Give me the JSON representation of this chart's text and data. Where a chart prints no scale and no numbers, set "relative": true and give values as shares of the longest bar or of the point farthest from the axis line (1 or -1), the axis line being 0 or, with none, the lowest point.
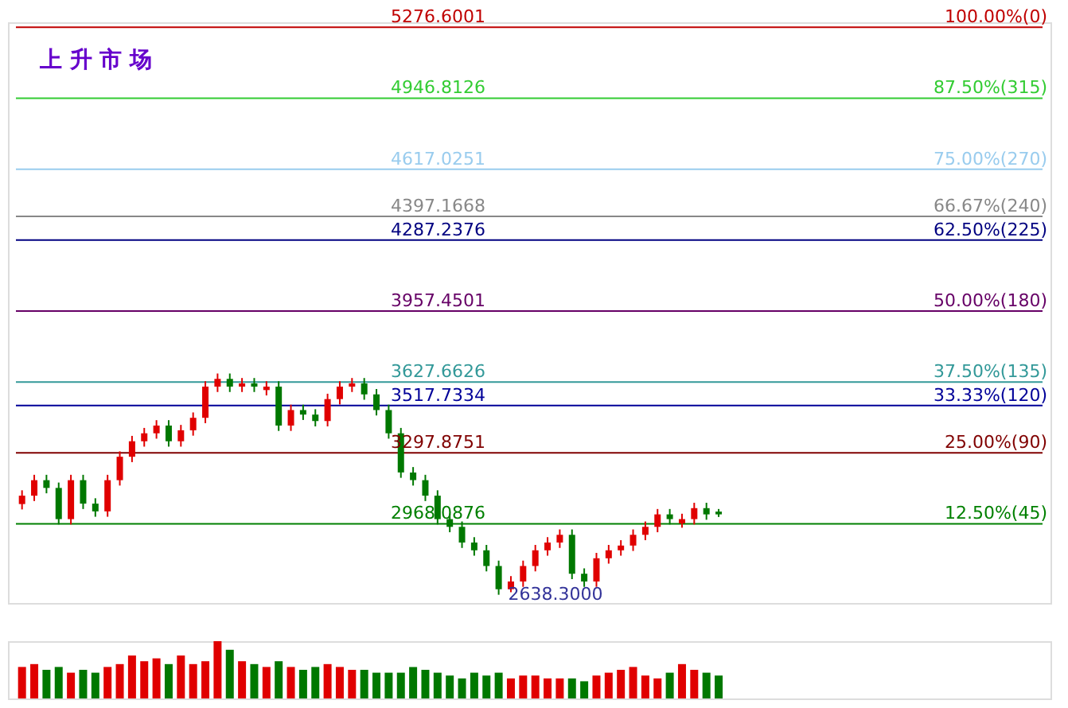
{
  "chart_data": [
    {
      "type": "candlestick",
      "title": "上 升 市 场",
      "categories": [
        null,
        null,
        null,
        null,
        null,
        null,
        null,
        null,
        null,
        null,
        null,
        null,
        null,
        null,
        null,
        null,
        null,
        null,
        null,
        null,
        null,
        null,
        null,
        null,
        null,
        null,
        null,
        null,
        null,
        null,
        null,
        null,
        null,
        null,
        null,
        null,
        null,
        null,
        null,
        null,
        null,
        null,
        null,
        null,
        null,
        null,
        null,
        null,
        null,
        null,
        null,
        null,
        null,
        null,
        null,
        null,
        null,
        null
      ],
      "ohlc": [
        [
          3060,
          3124,
          3035,
          3099
        ],
        [
          3099,
          3196,
          3074,
          3171
        ],
        [
          3171,
          3196,
          3110,
          3135
        ],
        [
          3135,
          3160,
          2965,
          2990
        ],
        [
          2990,
          3196,
          2965,
          3171
        ],
        [
          3171,
          3196,
          3037,
          3062
        ],
        [
          3062,
          3087,
          3001,
          3026
        ],
        [
          3026,
          3196,
          3001,
          3171
        ],
        [
          3171,
          3305,
          3146,
          3280
        ],
        [
          3280,
          3377,
          3255,
          3352
        ],
        [
          3352,
          3414,
          3327,
          3389
        ],
        [
          3389,
          3450,
          3364,
          3425
        ],
        [
          3425,
          3450,
          3327,
          3352
        ],
        [
          3352,
          3428,
          3327,
          3403
        ],
        [
          3403,
          3486,
          3378,
          3461
        ],
        [
          3461,
          3631,
          3436,
          3606
        ],
        [
          3606,
          3667,
          3581,
          3642
        ],
        [
          3642,
          3667,
          3581,
          3606
        ],
        [
          3606,
          3646,
          3581,
          3621
        ],
        [
          3621,
          3646,
          3581,
          3606
        ],
        [
          3590,
          3631,
          3565,
          3606
        ],
        [
          3606,
          3631,
          3400,
          3425
        ],
        [
          3425,
          3522,
          3400,
          3497
        ],
        [
          3497,
          3522,
          3451,
          3476
        ],
        [
          3476,
          3501,
          3421,
          3446
        ],
        [
          3446,
          3573,
          3421,
          3548
        ],
        [
          3548,
          3631,
          3523,
          3606
        ],
        [
          3606,
          3646,
          3581,
          3621
        ],
        [
          3621,
          3646,
          3545,
          3570
        ],
        [
          3570,
          3595,
          3472,
          3497
        ],
        [
          3497,
          3522,
          3364,
          3389
        ],
        [
          3389,
          3414,
          3182,
          3207
        ],
        [
          3207,
          3232,
          3146,
          3171
        ],
        [
          3171,
          3196,
          3074,
          3099
        ],
        [
          3099,
          3124,
          2965,
          2990
        ],
        [
          2990,
          3015,
          2929,
          2954
        ],
        [
          2954,
          2979,
          2856,
          2881
        ],
        [
          2881,
          2906,
          2820,
          2845
        ],
        [
          2845,
          2870,
          2747,
          2772
        ],
        [
          2772,
          2797,
          2638.3,
          2664
        ],
        [
          2664,
          2725,
          2650,
          2700
        ],
        [
          2700,
          2797,
          2675,
          2772
        ],
        [
          2772,
          2870,
          2747,
          2845
        ],
        [
          2845,
          2906,
          2820,
          2881
        ],
        [
          2881,
          2942,
          2856,
          2917
        ],
        [
          2917,
          2942,
          2711,
          2736
        ],
        [
          2736,
          2761,
          2675,
          2700
        ],
        [
          2700,
          2833,
          2675,
          2808
        ],
        [
          2808,
          2870,
          2783,
          2845
        ],
        [
          2845,
          2892,
          2820,
          2867
        ],
        [
          2867,
          2942,
          2842,
          2917
        ],
        [
          2917,
          2979,
          2892,
          2954
        ],
        [
          2954,
          3037,
          2929,
          3012
        ],
        [
          3012,
          3037,
          2965,
          2990
        ],
        [
          2970,
          3015,
          2950,
          2990
        ],
        [
          2990,
          3066,
          2965,
          3041
        ],
        [
          3041,
          3066,
          2987,
          3012
        ],
        [
          3025,
          3037,
          3000,
          3012
        ]
      ],
      "colors": [
        "#e00000",
        "#e00000",
        "#007800",
        "#007800",
        "#e00000",
        "#007800",
        "#007800",
        "#e00000",
        "#e00000",
        "#e00000",
        "#e00000",
        "#e00000",
        "#007800",
        "#e00000",
        "#e00000",
        "#e00000",
        "#e00000",
        "#007800",
        "#e00000",
        "#007800",
        "#e00000",
        "#007800",
        "#e00000",
        "#007800",
        "#007800",
        "#e00000",
        "#e00000",
        "#e00000",
        "#007800",
        "#007800",
        "#007800",
        "#007800",
        "#007800",
        "#007800",
        "#007800",
        "#007800",
        "#007800",
        "#007800",
        "#007800",
        "#007800",
        "#e00000",
        "#e00000",
        "#e00000",
        "#e00000",
        "#e00000",
        "#007800",
        "#007800",
        "#e00000",
        "#e00000",
        "#e00000",
        "#e00000",
        "#e00000",
        "#e00000",
        "#007800",
        "#e00000",
        "#e00000",
        "#007800",
        "#007800"
      ],
      "ylim": [
        2600,
        5300
      ],
      "yticks": [
        5276.6001,
        4946.8126,
        4617.0251,
        4397.1668,
        4287.2376,
        3957.4501,
        3627.6626,
        3517.7334,
        3297.8751,
        2968.0876
      ],
      "tick_labels": "y",
      "grid": false,
      "ref_lines": [
        {
          "axis": "y",
          "value": 5276.6001,
          "color": "#c00000"
        },
        {
          "axis": "y",
          "value": 4946.8126,
          "color": "#33cc33"
        },
        {
          "axis": "y",
          "value": 4617.0251,
          "color": "#99ccee"
        },
        {
          "axis": "y",
          "value": 4397.1668,
          "color": "#888888"
        },
        {
          "axis": "y",
          "value": 4287.2376,
          "color": "#000080"
        },
        {
          "axis": "y",
          "value": 3957.4501,
          "color": "#660066"
        },
        {
          "axis": "y",
          "value": 3627.6626,
          "color": "#339999"
        },
        {
          "axis": "y",
          "value": 3517.7334,
          "color": "#000099"
        },
        {
          "axis": "y",
          "value": 3297.8751,
          "color": "#800000"
        },
        {
          "axis": "y",
          "value": 2968.0876,
          "color": "#008000"
        }
      ],
      "annotations": [
        {
          "text": "100.00%(0)",
          "y": 5276.6001
        },
        {
          "text": "87.50%(315)",
          "y": 4946.8126
        },
        {
          "text": "75.00%(270)",
          "y": 4617.0251
        },
        {
          "text": "66.67%(240)",
          "y": 4397.1668
        },
        {
          "text": "62.50%(225)",
          "y": 4287.2376
        },
        {
          "text": "50.00%(180)",
          "y": 3957.4501
        },
        {
          "text": "37.50%(135)",
          "y": 3627.6626
        },
        {
          "text": "33.33%(120)",
          "y": 3517.7334
        },
        {
          "text": "25.00%(90)",
          "y": 3297.8751
        },
        {
          "text": "12.50%(45)",
          "y": 2968.0876
        },
        "2638.3000"
      ]
    },
    {
      "type": "bar",
      "relative": true,
      "categories": [
        null,
        null,
        null,
        null,
        null,
        null,
        null,
        null,
        null,
        null,
        null,
        null,
        null,
        null,
        null,
        null,
        null,
        null,
        null,
        null,
        null,
        null,
        null,
        null,
        null,
        null,
        null,
        null,
        null,
        null,
        null,
        null,
        null,
        null,
        null,
        null,
        null,
        null,
        null,
        null,
        null,
        null,
        null,
        null,
        null,
        null,
        null,
        null,
        null,
        null,
        null,
        null,
        null,
        null,
        null,
        null,
        null,
        null
      ],
      "values": [
        0.55,
        0.6,
        0.5,
        0.55,
        0.45,
        0.5,
        0.45,
        0.55,
        0.6,
        0.75,
        0.65,
        0.7,
        0.6,
        0.75,
        0.6,
        0.65,
        1,
        0.85,
        0.65,
        0.6,
        0.55,
        0.65,
        0.55,
        0.5,
        0.55,
        0.6,
        0.55,
        0.5,
        0.5,
        0.45,
        0.45,
        0.45,
        0.55,
        0.5,
        0.45,
        0.4,
        0.35,
        0.45,
        0.4,
        0.45,
        0.35,
        0.4,
        0.4,
        0.35,
        0.35,
        0.35,
        0.3,
        0.4,
        0.45,
        0.5,
        0.55,
        0.4,
        0.35,
        0.45,
        0.6,
        0.5,
        0.45,
        0.4
      ],
      "colors": [
        "#e00000",
        "#e00000",
        "#007800",
        "#007800",
        "#e00000",
        "#007800",
        "#007800",
        "#e00000",
        "#e00000",
        "#e00000",
        "#e00000",
        "#e00000",
        "#007800",
        "#e00000",
        "#e00000",
        "#e00000",
        "#e00000",
        "#007800",
        "#e00000",
        "#007800",
        "#e00000",
        "#007800",
        "#e00000",
        "#007800",
        "#007800",
        "#e00000",
        "#e00000",
        "#e00000",
        "#007800",
        "#007800",
        "#007800",
        "#007800",
        "#007800",
        "#007800",
        "#007800",
        "#007800",
        "#007800",
        "#007800",
        "#007800",
        "#007800",
        "#e00000",
        "#e00000",
        "#e00000",
        "#e00000",
        "#e00000",
        "#007800",
        "#007800",
        "#e00000",
        "#e00000",
        "#e00000",
        "#e00000",
        "#e00000",
        "#e00000",
        "#007800",
        "#e00000",
        "#e00000",
        "#007800",
        "#007800"
      ]
    }
  ]
}
